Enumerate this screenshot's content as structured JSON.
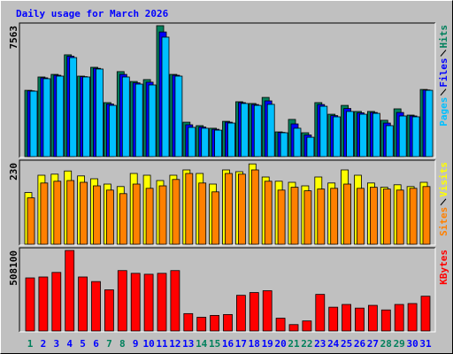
{
  "chart_data": [
    {
      "type": "bar",
      "title": "Daily usage for March 2026",
      "ylim": [
        0,
        7563
      ],
      "yticks": [
        7563
      ],
      "series": [
        {
          "name": "Pages",
          "color": "#00c0ff",
          "values": [
            3780,
            4500,
            4650,
            5720,
            4600,
            5060,
            2960,
            4600,
            4190,
            4140,
            6900,
            4650,
            1690,
            1640,
            1530,
            1940,
            3070,
            2960,
            3020,
            1380,
            1640,
            1120,
            2910,
            2300,
            2610,
            2450,
            2500,
            1790,
            2350,
            2300,
            3830
          ]
        },
        {
          "name": "Files",
          "color": "#0000ff",
          "values": [
            3800,
            4550,
            4700,
            5800,
            4620,
            5100,
            3040,
            4750,
            4260,
            4300,
            7200,
            4700,
            1840,
            1710,
            1580,
            1990,
            3120,
            3010,
            3220,
            1400,
            1890,
            1250,
            3010,
            2370,
            2780,
            2530,
            2550,
            1940,
            2550,
            2350,
            3850
          ]
        },
        {
          "name": "Hits",
          "color": "#00805c",
          "values": [
            3830,
            4600,
            4750,
            5880,
            4650,
            5160,
            3120,
            4910,
            4340,
            4450,
            7563,
            4750,
            1990,
            1790,
            1640,
            2040,
            3170,
            3070,
            3420,
            1430,
            2150,
            1380,
            3120,
            2450,
            2960,
            2610,
            2610,
            2100,
            2760,
            2400,
            3880
          ]
        }
      ]
    },
    {
      "type": "bar",
      "ylim": [
        0,
        230
      ],
      "yticks": [
        230
      ],
      "series": [
        {
          "name": "Sites",
          "color": "#ff8000",
          "values": [
            131,
            173,
            178,
            180,
            175,
            165,
            153,
            143,
            170,
            158,
            165,
            183,
            200,
            173,
            148,
            200,
            198,
            210,
            178,
            153,
            161,
            151,
            156,
            158,
            170,
            158,
            161,
            156,
            153,
            158,
            163
          ]
        },
        {
          "name": "Visits",
          "color": "#ffff00",
          "values": [
            146,
            195,
            198,
            207,
            193,
            185,
            170,
            163,
            200,
            195,
            180,
            195,
            210,
            200,
            170,
            210,
            205,
            227,
            190,
            178,
            175,
            165,
            190,
            173,
            210,
            195,
            173,
            161,
            168,
            163,
            175
          ]
        }
      ]
    },
    {
      "type": "bar",
      "ylim": [
        0,
        508100
      ],
      "yticks": [
        508100
      ],
      "categories": [
        "1",
        "2",
        "3",
        "4",
        "5",
        "6",
        "7",
        "8",
        "9",
        "10",
        "11",
        "12",
        "13",
        "14",
        "15",
        "16",
        "17",
        "18",
        "19",
        "20",
        "21",
        "22",
        "23",
        "24",
        "25",
        "26",
        "27",
        "28",
        "29",
        "30",
        "31"
      ],
      "category_colors": [
        "#00805c",
        "#0000ff",
        "#0000ff",
        "#0000ff",
        "#0000ff",
        "#0000ff",
        "#00805c",
        "#00805c",
        "#0000ff",
        "#0000ff",
        "#0000ff",
        "#0000ff",
        "#0000ff",
        "#00805c",
        "#00805c",
        "#0000ff",
        "#0000ff",
        "#0000ff",
        "#0000ff",
        "#0000ff",
        "#00805c",
        "#00805c",
        "#0000ff",
        "#0000ff",
        "#0000ff",
        "#0000ff",
        "#0000ff",
        "#00805c",
        "#00805c",
        "#0000ff",
        "#0000ff"
      ],
      "series": [
        {
          "name": "KBytes",
          "color": "#ff0000",
          "values": [
            334900,
            340700,
            369500,
            508100,
            340700,
            311800,
            259800,
            381100,
            363800,
            358000,
            363800,
            381100,
            109700,
            86600,
            98200,
            103900,
            225200,
            242500,
            254100,
            80800,
            40400,
            63500,
            231000,
            150100,
            167400,
            144400,
            161700,
            132800,
            167400,
            173200,
            219400
          ]
        }
      ]
    }
  ]
}
